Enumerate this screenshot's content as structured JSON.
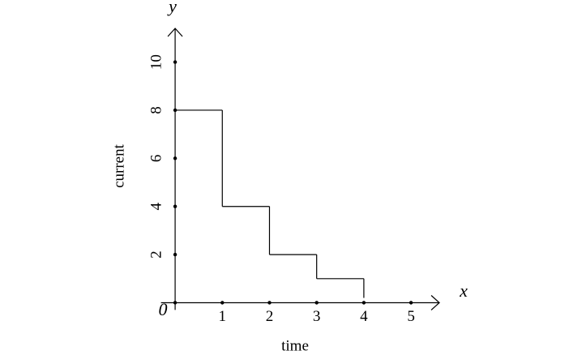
{
  "chart_data": {
    "type": "step",
    "x_label": "time",
    "y_label": "current",
    "x_axis_symbol": "x",
    "y_axis_symbol": "y",
    "origin_label": "0",
    "x": [
      0,
      1,
      2,
      3,
      4
    ],
    "values": [
      8,
      4,
      2,
      1,
      0.2
    ],
    "color": "#000000",
    "xlim": [
      -0.3,
      5.6
    ],
    "ylim": [
      -0.3,
      11.4
    ],
    "xticks": [
      1,
      2,
      3,
      4,
      5
    ],
    "yticks": [
      2,
      4,
      6,
      8,
      10
    ]
  }
}
